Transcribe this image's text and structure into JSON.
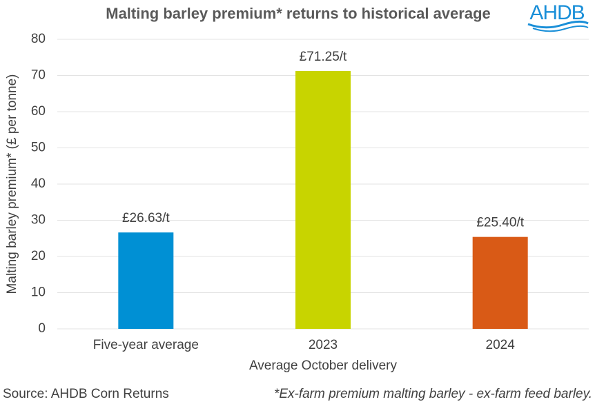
{
  "chart_data": {
    "type": "bar",
    "title": "Malting barley premium* returns to historical average",
    "logo": "AHDB",
    "categories": [
      "Five-year average",
      "2023",
      "2024"
    ],
    "values": [
      26.63,
      71.25,
      25.4
    ],
    "value_labels": [
      "£26.63/t",
      "£71.25/t",
      "£25.40/t"
    ],
    "colors": [
      "#0090d4",
      "#c8d400",
      "#d95a16"
    ],
    "ylabel": "Malting barley premium* (£ per tonne)",
    "xlabel": "Average October delivery",
    "ylim": [
      0,
      80
    ],
    "yticks": [
      0,
      10,
      20,
      30,
      40,
      50,
      60,
      70,
      80
    ],
    "grid": true,
    "source": "Source: AHDB Corn Returns",
    "footnote": "*Ex-farm premium malting barley - ex-farm feed barley."
  }
}
